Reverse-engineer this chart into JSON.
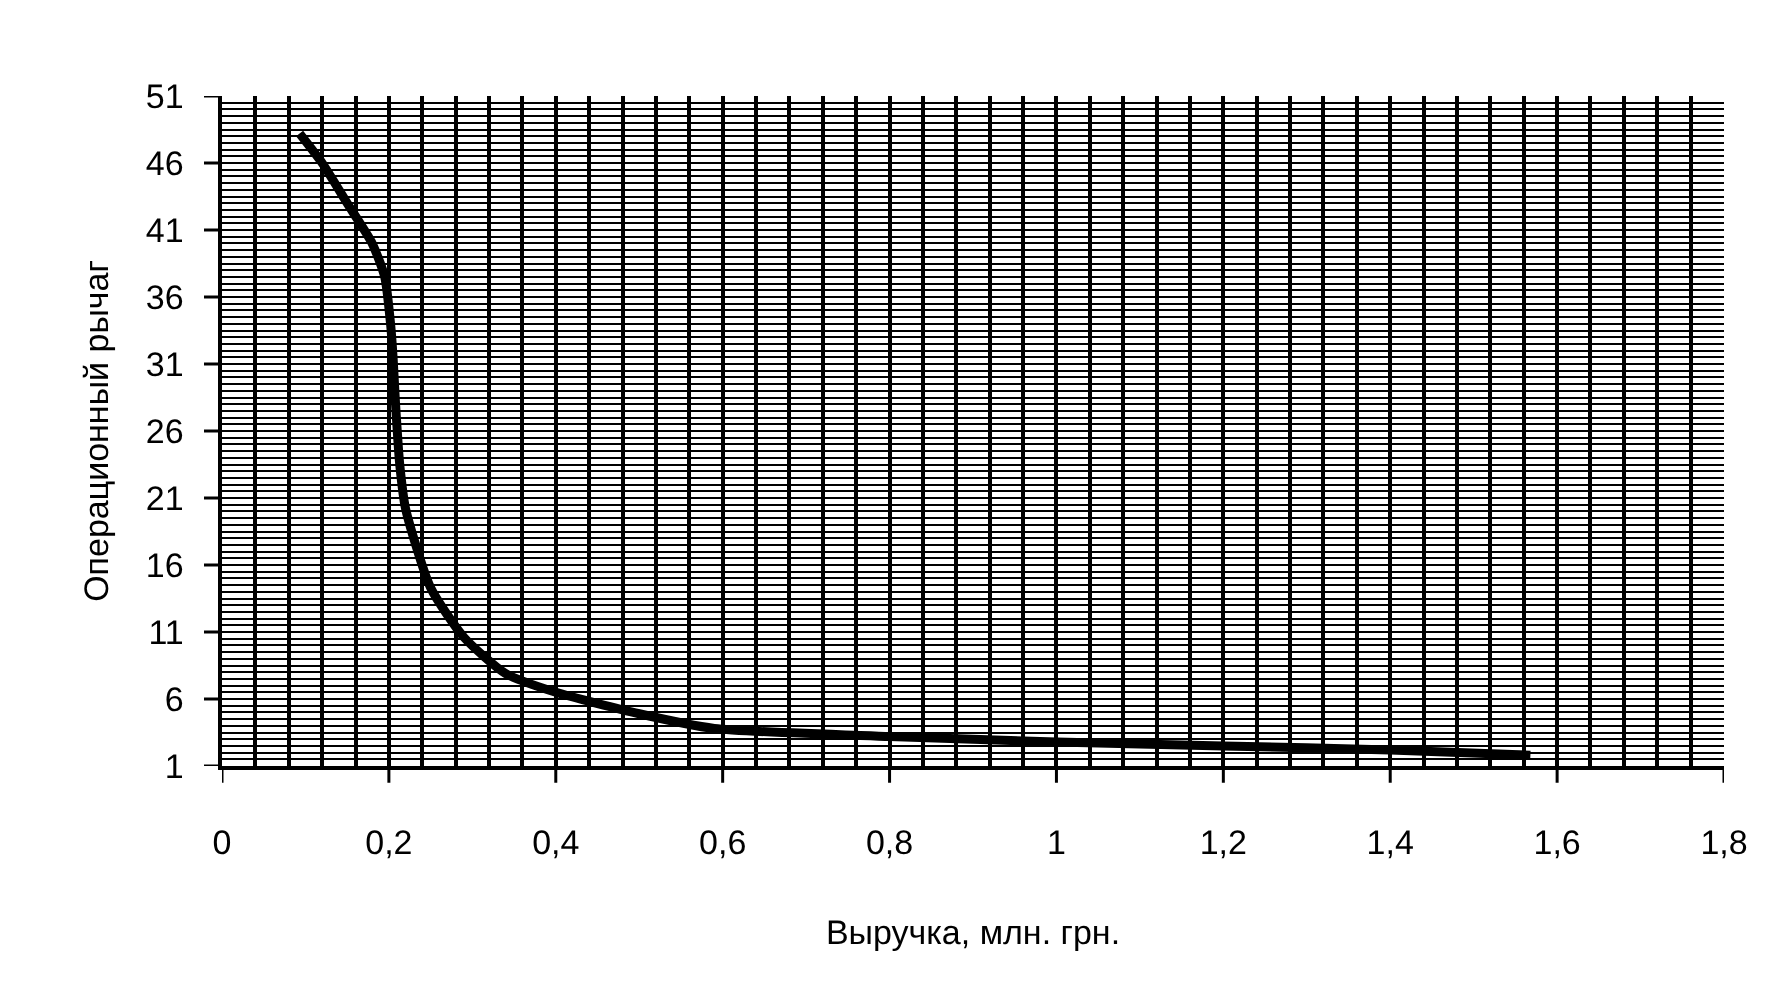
{
  "chart_data": {
    "type": "line",
    "xlabel": "Выручка, млн. грн.",
    "ylabel": "Операционный рычаг",
    "x": [
      0.093,
      0.12,
      0.15,
      0.18,
      0.195,
      0.202,
      0.205,
      0.208,
      0.213,
      0.22,
      0.25,
      0.29,
      0.34,
      0.4,
      0.5,
      0.59,
      0.8,
      1.0,
      1.2,
      1.4,
      1.568
    ],
    "series": [
      {
        "color": "#000000",
        "values": [
          48.2,
          46,
          43,
          40,
          37.5,
          34,
          31.5,
          28,
          23.5,
          20.2,
          14.3,
          10.6,
          7.9,
          6.5,
          4.9,
          3.8,
          3.2,
          2.8,
          2.5,
          2.2,
          1.8
        ]
      }
    ],
    "xlim": [
      0,
      1.8
    ],
    "ylim": [
      1,
      51
    ],
    "xticks": [
      0,
      {
        "value": 0.04,
        "label": null
      },
      {
        "value": 0.08,
        "label": null
      },
      {
        "value": 0.12,
        "label": null
      },
      {
        "value": 0.16,
        "label": null
      },
      {
        "value": 0.2,
        "label": "0,2"
      },
      {
        "value": 0.24,
        "label": null
      },
      {
        "value": 0.28,
        "label": null
      },
      {
        "value": 0.32,
        "label": null
      },
      {
        "value": 0.36,
        "label": null
      },
      {
        "value": 0.4,
        "label": "0,4"
      },
      {
        "value": 0.44,
        "label": null
      },
      {
        "value": 0.48,
        "label": null
      },
      {
        "value": 0.52,
        "label": null
      },
      {
        "value": 0.56,
        "label": null
      },
      {
        "value": 0.6,
        "label": "0,6"
      },
      {
        "value": 0.64,
        "label": null
      },
      {
        "value": 0.68,
        "label": null
      },
      {
        "value": 0.72,
        "label": null
      },
      {
        "value": 0.76,
        "label": null
      },
      {
        "value": 0.8,
        "label": "0,8"
      },
      {
        "value": 0.84,
        "label": null
      },
      {
        "value": 0.88,
        "label": null
      },
      {
        "value": 0.92,
        "label": null
      },
      {
        "value": 0.96,
        "label": null
      },
      1,
      {
        "value": 1.04,
        "label": null
      },
      {
        "value": 1.08,
        "label": null
      },
      {
        "value": 1.12,
        "label": null
      },
      {
        "value": 1.16,
        "label": null
      },
      {
        "value": 1.2,
        "label": "1,2"
      },
      {
        "value": 1.24,
        "label": null
      },
      {
        "value": 1.28,
        "label": null
      },
      {
        "value": 1.32,
        "label": null
      },
      {
        "value": 1.36,
        "label": null
      },
      {
        "value": 1.4,
        "label": "1,4"
      },
      {
        "value": 1.44,
        "label": null
      },
      {
        "value": 1.48,
        "label": null
      },
      {
        "value": 1.52,
        "label": null
      },
      {
        "value": 1.56,
        "label": null
      },
      {
        "value": 1.6,
        "label": "1,6"
      },
      {
        "value": 1.64,
        "label": null
      },
      {
        "value": 1.68,
        "label": null
      },
      {
        "value": 1.72,
        "label": null
      },
      {
        "value": 1.76,
        "label": null
      },
      {
        "value": 1.8,
        "label": "1,8"
      }
    ],
    "yticks": [
      1,
      {
        "value": 1.5,
        "label": null
      },
      {
        "value": 2,
        "label": null
      },
      {
        "value": 2.5,
        "label": null
      },
      {
        "value": 3,
        "label": null
      },
      {
        "value": 3.5,
        "label": null
      },
      {
        "value": 4,
        "label": null
      },
      {
        "value": 4.5,
        "label": null
      },
      {
        "value": 5,
        "label": null
      },
      {
        "value": 5.5,
        "label": null
      },
      6,
      {
        "value": 6.5,
        "label": null
      },
      {
        "value": 7,
        "label": null
      },
      {
        "value": 7.5,
        "label": null
      },
      {
        "value": 8,
        "label": null
      },
      {
        "value": 8.5,
        "label": null
      },
      {
        "value": 9,
        "label": null
      },
      {
        "value": 9.5,
        "label": null
      },
      {
        "value": 10,
        "label": null
      },
      {
        "value": 10.5,
        "label": null
      },
      11,
      {
        "value": 11.5,
        "label": null
      },
      {
        "value": 12,
        "label": null
      },
      {
        "value": 12.5,
        "label": null
      },
      {
        "value": 13,
        "label": null
      },
      {
        "value": 13.5,
        "label": null
      },
      {
        "value": 14,
        "label": null
      },
      {
        "value": 14.5,
        "label": null
      },
      {
        "value": 15,
        "label": null
      },
      {
        "value": 15.5,
        "label": null
      },
      16,
      {
        "value": 16.5,
        "label": null
      },
      {
        "value": 17,
        "label": null
      },
      {
        "value": 17.5,
        "label": null
      },
      {
        "value": 18,
        "label": null
      },
      {
        "value": 18.5,
        "label": null
      },
      {
        "value": 19,
        "label": null
      },
      {
        "value": 19.5,
        "label": null
      },
      {
        "value": 20,
        "label": null
      },
      {
        "value": 20.5,
        "label": null
      },
      21,
      {
        "value": 21.5,
        "label": null
      },
      {
        "value": 22,
        "label": null
      },
      {
        "value": 22.5,
        "label": null
      },
      {
        "value": 23,
        "label": null
      },
      {
        "value": 23.5,
        "label": null
      },
      {
        "value": 24,
        "label": null
      },
      {
        "value": 24.5,
        "label": null
      },
      {
        "value": 25,
        "label": null
      },
      {
        "value": 25.5,
        "label": null
      },
      26,
      {
        "value": 26.5,
        "label": null
      },
      {
        "value": 27,
        "label": null
      },
      {
        "value": 27.5,
        "label": null
      },
      {
        "value": 28,
        "label": null
      },
      {
        "value": 28.5,
        "label": null
      },
      {
        "value": 29,
        "label": null
      },
      {
        "value": 29.5,
        "label": null
      },
      {
        "value": 30,
        "label": null
      },
      {
        "value": 30.5,
        "label": null
      },
      31,
      {
        "value": 31.5,
        "label": null
      },
      {
        "value": 32,
        "label": null
      },
      {
        "value": 32.5,
        "label": null
      },
      {
        "value": 33,
        "label": null
      },
      {
        "value": 33.5,
        "label": null
      },
      {
        "value": 34,
        "label": null
      },
      {
        "value": 34.5,
        "label": null
      },
      {
        "value": 35,
        "label": null
      },
      {
        "value": 35.5,
        "label": null
      },
      36,
      {
        "value": 36.5,
        "label": null
      },
      {
        "value": 37,
        "label": null
      },
      {
        "value": 37.5,
        "label": null
      },
      {
        "value": 38,
        "label": null
      },
      {
        "value": 38.5,
        "label": null
      },
      {
        "value": 39,
        "label": null
      },
      {
        "value": 39.5,
        "label": null
      },
      {
        "value": 40,
        "label": null
      },
      {
        "value": 40.5,
        "label": null
      },
      41,
      {
        "value": 41.5,
        "label": null
      },
      {
        "value": 42,
        "label": null
      },
      {
        "value": 42.5,
        "label": null
      },
      {
        "value": 43,
        "label": null
      },
      {
        "value": 43.5,
        "label": null
      },
      {
        "value": 44,
        "label": null
      },
      {
        "value": 44.5,
        "label": null
      },
      {
        "value": 45,
        "label": null
      },
      {
        "value": 45.5,
        "label": null
      },
      46,
      {
        "value": 46.5,
        "label": null
      },
      {
        "value": 47,
        "label": null
      },
      {
        "value": 47.5,
        "label": null
      },
      {
        "value": 48,
        "label": null
      },
      {
        "value": 48.5,
        "label": null
      },
      {
        "value": 49,
        "label": null
      },
      {
        "value": 49.5,
        "label": null
      },
      {
        "value": 50,
        "label": null
      },
      {
        "value": 50.5,
        "label": null
      },
      51
    ],
    "grid": true,
    "marker": "none",
    "line_style": "solid"
  }
}
